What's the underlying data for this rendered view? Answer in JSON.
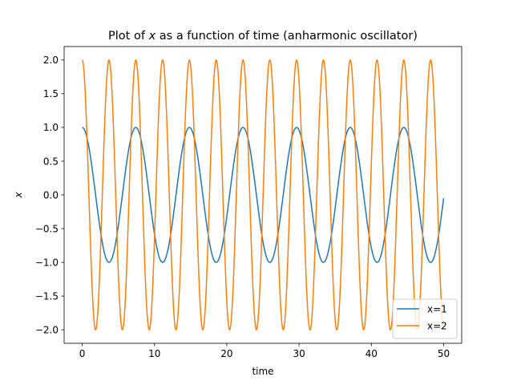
{
  "chart_data": {
    "type": "line",
    "title_before": "Plot of ",
    "title_var": "x",
    "title_after": " as a function of time (anharmonic oscillator)",
    "xlabel": "time",
    "ylabel": "x",
    "xlim": [
      -2.5,
      52.5
    ],
    "ylim": [
      -2.2,
      2.2
    ],
    "xticks": [
      0,
      10,
      20,
      30,
      40,
      50
    ],
    "xtick_labels": [
      "0",
      "10",
      "20",
      "30",
      "40",
      "50"
    ],
    "yticks": [
      2.0,
      1.5,
      1.0,
      0.5,
      0.0,
      -0.5,
      -1.0,
      -1.5,
      -2.0
    ],
    "ytick_labels": [
      "2.0",
      "1.5",
      "1.0",
      "0.5",
      "0.0",
      "−0.5",
      "−1.0",
      "−1.5",
      "−2.0"
    ],
    "grid": false,
    "legend_position": "lower-right",
    "series": [
      {
        "name": "x=1",
        "color": "#1f77b4",
        "amplitude": 1.0,
        "period": 7.416,
        "t_start": 0,
        "t_end": 50
      },
      {
        "name": "x=2",
        "color": "#ff7f0e",
        "amplitude": 2.0,
        "period": 3.708,
        "t_start": 0,
        "t_end": 50
      }
    ]
  }
}
